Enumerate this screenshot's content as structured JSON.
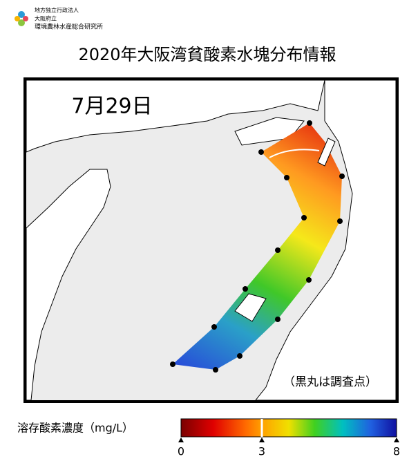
{
  "header": {
    "org_lines": [
      "地方独立行政法人",
      "大阪府立",
      "環境農林水産総合研究所"
    ]
  },
  "title": "2020年大阪湾貧酸素水塊分布情報",
  "map": {
    "date": "7月29日",
    "note": "（黒丸は調査点）"
  },
  "colorbar": {
    "label": "溶存酸素濃度（mg/L）",
    "range": [
      0,
      8
    ],
    "ticks": [
      0,
      3,
      8
    ]
  }
}
